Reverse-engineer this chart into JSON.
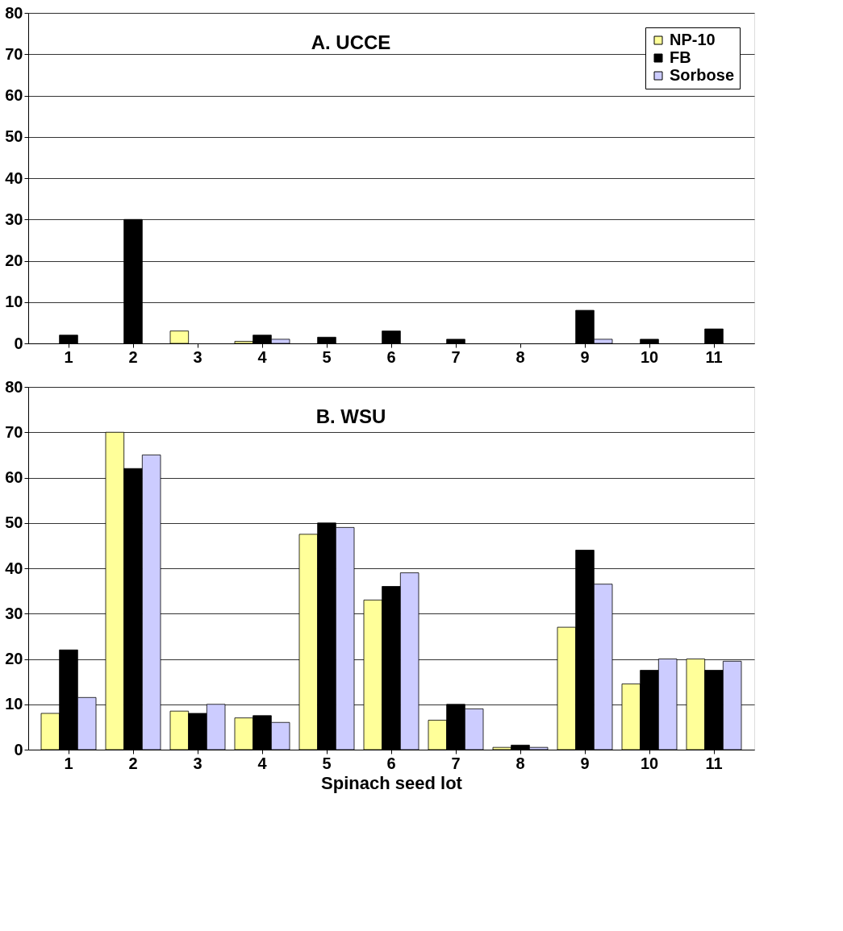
{
  "chart_data": [
    {
      "type": "bar",
      "title": "A. UCCE",
      "categories": [
        "1",
        "2",
        "3",
        "4",
        "5",
        "6",
        "7",
        "8",
        "9",
        "10",
        "11"
      ],
      "ylim": [
        0,
        80
      ],
      "yticks": [
        0,
        10,
        20,
        30,
        40,
        50,
        60,
        70,
        80
      ],
      "grid": "y",
      "legend": "top right",
      "series": [
        {
          "name": "NP-10",
          "color": "#ffff99",
          "values": [
            0,
            0,
            3,
            0.5,
            0,
            0,
            0,
            0,
            0,
            0,
            0
          ]
        },
        {
          "name": "FB",
          "color": "#000000",
          "values": [
            2,
            30,
            0,
            2,
            1.5,
            3,
            1,
            0,
            8,
            1,
            3.5
          ]
        },
        {
          "name": "Sorbose",
          "color": "#ccccff",
          "values": [
            0,
            0,
            0,
            1,
            0,
            0,
            0,
            0,
            1,
            0,
            0
          ]
        }
      ]
    },
    {
      "type": "bar",
      "title": "B. WSU",
      "xlabel": "Spinach seed lot",
      "categories": [
        "1",
        "2",
        "3",
        "4",
        "5",
        "6",
        "7",
        "8",
        "9",
        "10",
        "11"
      ],
      "ylim": [
        0,
        80
      ],
      "yticks": [
        0,
        10,
        20,
        30,
        40,
        50,
        60,
        70,
        80
      ],
      "grid": "y",
      "legend": "top right",
      "series": [
        {
          "name": "NP-10",
          "color": "#ffff99",
          "values": [
            8,
            70,
            8.5,
            7,
            47.5,
            33,
            6.5,
            0.5,
            27,
            14.5,
            20
          ]
        },
        {
          "name": "FB",
          "color": "#000000",
          "values": [
            22,
            62,
            8,
            7.5,
            50,
            36,
            10,
            1,
            44,
            17.5,
            17.5
          ]
        },
        {
          "name": "Sorbose",
          "color": "#ccccff",
          "values": [
            11.5,
            65,
            10,
            6,
            49,
            39,
            9,
            0.5,
            36.5,
            20,
            19.5
          ]
        }
      ]
    }
  ]
}
